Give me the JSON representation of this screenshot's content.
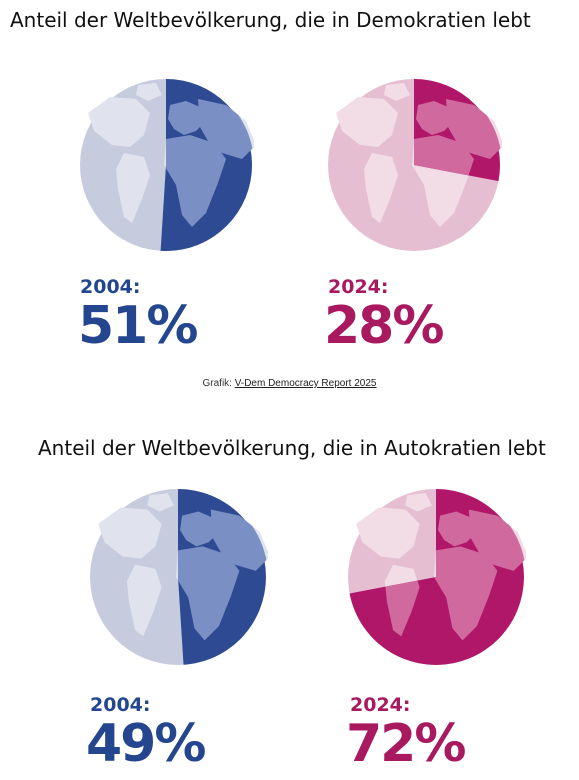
{
  "source": {
    "prefix": "Grafik:",
    "link_text": "V-Dem Democracy Report 2025"
  },
  "colors": {
    "blue": "#2d4a93",
    "blue_light": "#c6cbdd",
    "blue_text": "#24468f",
    "magenta": "#b01769",
    "magenta_light": "#e5bfd1",
    "magenta_text": "#a8195f"
  },
  "chart_data": [
    {
      "type": "pie",
      "title": "Anteil der Weltbevölkerung, die in Demokratien lebt",
      "categories": [
        "2004",
        "2024"
      ],
      "series": [
        {
          "values": [
            51,
            28
          ]
        }
      ],
      "labels": [
        {
          "year": "2004:",
          "value": "51%"
        },
        {
          "year": "2024:",
          "value": "28%"
        }
      ]
    },
    {
      "type": "pie",
      "title": "Anteil der Weltbevölkerung, die in Autokratien lebt",
      "categories": [
        "2004",
        "2024"
      ],
      "series": [
        {
          "values": [
            49,
            72
          ]
        }
      ],
      "labels": [
        {
          "year": "2004:",
          "value": "49%"
        },
        {
          "year": "2024:",
          "value": "72%"
        }
      ]
    }
  ]
}
